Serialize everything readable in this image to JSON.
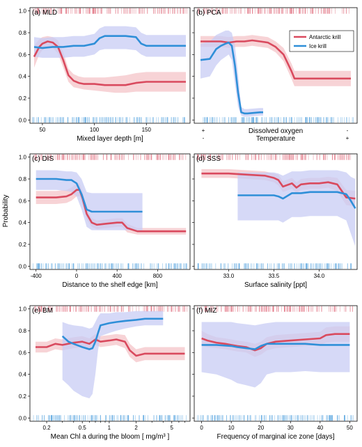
{
  "figure": {
    "ylabel": "Probability",
    "legend": {
      "position": "top-right of panel (b)",
      "items": [
        {
          "name": "Antarctic krill",
          "color": "#d94a5e"
        },
        {
          "name": "Ice krill",
          "color": "#2f8fd8"
        }
      ]
    },
    "colors": {
      "antarctic": "#d94a5e",
      "antarctic_band": "#f4c4c8",
      "ice": "#2f8fd8",
      "ice_band": "#c8ccf4"
    }
  },
  "chart_data": [
    {
      "type": "line",
      "title": "(a) MLD",
      "xlabel": "Mixed layer depth [m]",
      "xlim": [
        38,
        192
      ],
      "ylim": [
        -0.03,
        1.03
      ],
      "xticks": [
        50,
        100,
        150
      ],
      "xtick_labels": [
        "50",
        "100",
        "150"
      ],
      "series": [
        {
          "name": "Antarctic krill",
          "x": [
            42,
            47,
            50,
            55,
            60,
            65,
            70,
            75,
            80,
            85,
            90,
            100,
            110,
            120,
            130,
            140,
            150,
            160,
            170,
            180,
            188
          ],
          "y": [
            0.58,
            0.67,
            0.7,
            0.72,
            0.71,
            0.67,
            0.55,
            0.41,
            0.36,
            0.34,
            0.33,
            0.33,
            0.32,
            0.32,
            0.32,
            0.34,
            0.35,
            0.35,
            0.35,
            0.35,
            0.35
          ],
          "band_lo": [
            0.48,
            0.6,
            0.64,
            0.67,
            0.66,
            0.61,
            0.48,
            0.35,
            0.3,
            0.29,
            0.28,
            0.27,
            0.26,
            0.25,
            0.25,
            0.26,
            0.26,
            0.26,
            0.26,
            0.26,
            0.26
          ],
          "band_hi": [
            0.68,
            0.74,
            0.76,
            0.77,
            0.76,
            0.73,
            0.62,
            0.47,
            0.42,
            0.4,
            0.39,
            0.39,
            0.39,
            0.4,
            0.41,
            0.43,
            0.44,
            0.44,
            0.44,
            0.44,
            0.44
          ]
        },
        {
          "name": "Ice krill",
          "x": [
            42,
            50,
            60,
            70,
            80,
            90,
            100,
            105,
            110,
            120,
            130,
            140,
            145,
            150,
            160,
            170,
            180,
            188
          ],
          "y": [
            0.67,
            0.66,
            0.67,
            0.67,
            0.68,
            0.68,
            0.7,
            0.75,
            0.77,
            0.77,
            0.77,
            0.76,
            0.7,
            0.68,
            0.68,
            0.68,
            0.68,
            0.68
          ],
          "band_lo": [
            0.58,
            0.57,
            0.57,
            0.57,
            0.58,
            0.58,
            0.6,
            0.64,
            0.65,
            0.65,
            0.65,
            0.64,
            0.6,
            0.58,
            0.58,
            0.58,
            0.58,
            0.58
          ],
          "band_hi": [
            0.76,
            0.75,
            0.76,
            0.76,
            0.77,
            0.77,
            0.79,
            0.84,
            0.86,
            0.86,
            0.86,
            0.85,
            0.8,
            0.78,
            0.78,
            0.78,
            0.78,
            0.78
          ]
        }
      ]
    },
    {
      "type": "line",
      "title": "(b) PCA",
      "xlabel_lines": [
        "Dissolved oxygen",
        "Temperature"
      ],
      "xlim": [
        -0.02,
        1.02
      ],
      "ylim": [
        -0.03,
        1.03
      ],
      "corner_marks": {
        "left": [
          "+",
          "-"
        ],
        "right": [
          "-",
          "+"
        ]
      },
      "series": [
        {
          "name": "Antarctic krill",
          "x": [
            0.02,
            0.1,
            0.15,
            0.2,
            0.25,
            0.3,
            0.35,
            0.4,
            0.45,
            0.5,
            0.55,
            0.6,
            0.62,
            0.7,
            0.8,
            0.9,
            0.98
          ],
          "y": [
            0.72,
            0.72,
            0.72,
            0.71,
            0.72,
            0.72,
            0.73,
            0.72,
            0.71,
            0.67,
            0.6,
            0.45,
            0.38,
            0.38,
            0.38,
            0.38,
            0.38
          ],
          "band_lo": [
            0.67,
            0.67,
            0.67,
            0.66,
            0.67,
            0.67,
            0.68,
            0.67,
            0.66,
            0.62,
            0.54,
            0.38,
            0.31,
            0.31,
            0.31,
            0.31,
            0.31
          ],
          "band_hi": [
            0.77,
            0.77,
            0.77,
            0.76,
            0.77,
            0.77,
            0.78,
            0.77,
            0.76,
            0.72,
            0.66,
            0.52,
            0.45,
            0.45,
            0.45,
            0.45,
            0.45
          ]
        },
        {
          "name": "Ice krill",
          "x": [
            0.02,
            0.08,
            0.12,
            0.15,
            0.18,
            0.2,
            0.22,
            0.24,
            0.26,
            0.28,
            0.3,
            0.32,
            0.4,
            0.42
          ],
          "y": [
            0.55,
            0.56,
            0.65,
            0.68,
            0.7,
            0.71,
            0.68,
            0.5,
            0.25,
            0.07,
            0.06,
            0.06,
            0.07,
            0.07
          ],
          "band_lo": [
            0.38,
            0.4,
            0.5,
            0.55,
            0.58,
            0.6,
            0.55,
            0.33,
            0.12,
            0.04,
            0.03,
            0.03,
            0.04,
            0.04
          ],
          "band_hi": [
            0.7,
            0.72,
            0.78,
            0.8,
            0.82,
            0.82,
            0.8,
            0.68,
            0.42,
            0.12,
            0.1,
            0.1,
            0.11,
            0.11
          ]
        }
      ]
    },
    {
      "type": "line",
      "title": "(c) DIS",
      "xlabel": "Distance to the shelf edge [km]",
      "xlim": [
        -460,
        1120
      ],
      "ylim": [
        -0.03,
        1.03
      ],
      "xticks": [
        -400,
        0,
        400,
        800
      ],
      "xtick_labels": [
        "-400",
        "0",
        "400",
        "800"
      ],
      "series": [
        {
          "name": "Antarctic krill",
          "x": [
            -400,
            -300,
            -200,
            -100,
            -50,
            0,
            30,
            60,
            100,
            150,
            200,
            300,
            400,
            450,
            500,
            600,
            700,
            800,
            900,
            1000,
            1080
          ],
          "y": [
            0.63,
            0.63,
            0.63,
            0.64,
            0.66,
            0.7,
            0.7,
            0.62,
            0.48,
            0.4,
            0.38,
            0.39,
            0.4,
            0.4,
            0.35,
            0.32,
            0.32,
            0.32,
            0.32,
            0.32,
            0.32
          ],
          "band_lo": [
            0.57,
            0.57,
            0.57,
            0.58,
            0.6,
            0.64,
            0.64,
            0.56,
            0.43,
            0.36,
            0.34,
            0.35,
            0.36,
            0.36,
            0.31,
            0.29,
            0.29,
            0.29,
            0.29,
            0.29,
            0.29
          ],
          "band_hi": [
            0.69,
            0.69,
            0.69,
            0.7,
            0.72,
            0.76,
            0.76,
            0.68,
            0.53,
            0.44,
            0.42,
            0.43,
            0.44,
            0.44,
            0.39,
            0.35,
            0.35,
            0.35,
            0.35,
            0.35,
            0.35
          ]
        },
        {
          "name": "Ice krill",
          "x": [
            -400,
            -300,
            -200,
            -100,
            -50,
            0,
            50,
            100,
            150,
            200,
            300,
            400,
            500,
            600,
            650
          ],
          "y": [
            0.8,
            0.8,
            0.8,
            0.79,
            0.79,
            0.76,
            0.66,
            0.52,
            0.5,
            0.5,
            0.5,
            0.5,
            0.5,
            0.5,
            0.5
          ],
          "band_lo": [
            0.7,
            0.7,
            0.7,
            0.69,
            0.68,
            0.64,
            0.52,
            0.36,
            0.33,
            0.33,
            0.33,
            0.33,
            0.33,
            0.33,
            0.33
          ],
          "band_hi": [
            0.88,
            0.88,
            0.88,
            0.87,
            0.87,
            0.86,
            0.8,
            0.68,
            0.67,
            0.67,
            0.67,
            0.67,
            0.67,
            0.67,
            0.67
          ]
        }
      ]
    },
    {
      "type": "line",
      "title": "(d) SSS",
      "xlabel": "Surface salinity [ppt]",
      "xlim": [
        32.62,
        34.42
      ],
      "ylim": [
        -0.03,
        1.03
      ],
      "xticks": [
        33.0,
        33.5,
        34.0
      ],
      "xtick_labels": [
        "33.0",
        "33.5",
        "34.0"
      ],
      "series": [
        {
          "name": "Antarctic krill",
          "x": [
            32.7,
            33.0,
            33.2,
            33.4,
            33.5,
            33.55,
            33.6,
            33.7,
            33.75,
            33.8,
            33.9,
            34.0,
            34.1,
            34.2,
            34.3,
            34.4
          ],
          "y": [
            0.85,
            0.85,
            0.84,
            0.83,
            0.81,
            0.79,
            0.73,
            0.76,
            0.72,
            0.75,
            0.76,
            0.76,
            0.77,
            0.75,
            0.63,
            0.62
          ],
          "band_lo": [
            0.81,
            0.81,
            0.8,
            0.79,
            0.77,
            0.74,
            0.68,
            0.71,
            0.67,
            0.7,
            0.71,
            0.71,
            0.72,
            0.69,
            0.56,
            0.55
          ],
          "band_hi": [
            0.89,
            0.89,
            0.88,
            0.87,
            0.85,
            0.84,
            0.78,
            0.81,
            0.77,
            0.8,
            0.81,
            0.81,
            0.82,
            0.81,
            0.7,
            0.69
          ]
        },
        {
          "name": "Ice krill",
          "x": [
            33.1,
            33.2,
            33.3,
            33.4,
            33.5,
            33.55,
            33.6,
            33.7,
            33.8,
            33.9,
            34.0,
            34.1,
            34.2,
            34.3,
            34.35,
            34.4
          ],
          "y": [
            0.65,
            0.65,
            0.65,
            0.65,
            0.65,
            0.64,
            0.62,
            0.67,
            0.67,
            0.68,
            0.68,
            0.68,
            0.68,
            0.66,
            0.6,
            0.53
          ],
          "band_lo": [
            0.42,
            0.42,
            0.42,
            0.42,
            0.42,
            0.42,
            0.4,
            0.45,
            0.45,
            0.46,
            0.46,
            0.46,
            0.46,
            0.42,
            0.3,
            0.18
          ],
          "band_hi": [
            0.86,
            0.86,
            0.86,
            0.86,
            0.86,
            0.85,
            0.83,
            0.87,
            0.87,
            0.88,
            0.88,
            0.88,
            0.88,
            0.86,
            0.82,
            0.8
          ]
        }
      ]
    },
    {
      "type": "line",
      "title": "(e) BM",
      "xlabel": "Mean Chl a during the bloom [ mg/m³ ]",
      "x_scale": "log",
      "xlim": [
        0.13,
        8.0
      ],
      "ylim": [
        -0.03,
        1.03
      ],
      "xticks": [
        0.2,
        0.5,
        1,
        2,
        5
      ],
      "xtick_labels": [
        "0.2",
        "0.5",
        "1",
        "2",
        "5"
      ],
      "series": [
        {
          "name": "Antarctic krill",
          "x": [
            0.15,
            0.2,
            0.25,
            0.3,
            0.4,
            0.5,
            0.6,
            0.7,
            0.8,
            1.0,
            1.2,
            1.5,
            1.7,
            2.0,
            2.5,
            3.0,
            4.0,
            5.0,
            6.0,
            7.0
          ],
          "y": [
            0.65,
            0.65,
            0.68,
            0.67,
            0.69,
            0.7,
            0.68,
            0.72,
            0.7,
            0.71,
            0.72,
            0.7,
            0.62,
            0.57,
            0.59,
            0.59,
            0.59,
            0.59,
            0.59,
            0.59
          ],
          "band_lo": [
            0.6,
            0.6,
            0.63,
            0.62,
            0.64,
            0.65,
            0.63,
            0.67,
            0.65,
            0.66,
            0.67,
            0.64,
            0.56,
            0.51,
            0.53,
            0.53,
            0.53,
            0.53,
            0.53,
            0.53
          ],
          "band_hi": [
            0.7,
            0.7,
            0.73,
            0.72,
            0.74,
            0.75,
            0.73,
            0.77,
            0.75,
            0.76,
            0.77,
            0.76,
            0.68,
            0.63,
            0.65,
            0.65,
            0.65,
            0.65,
            0.65,
            0.65
          ]
        },
        {
          "name": "Ice krill",
          "x": [
            0.3,
            0.35,
            0.4,
            0.5,
            0.6,
            0.65,
            0.7,
            0.75,
            0.8,
            1.0,
            1.2,
            1.5,
            2.0,
            2.5,
            3.0,
            4.0
          ],
          "y": [
            0.75,
            0.7,
            0.68,
            0.65,
            0.63,
            0.64,
            0.7,
            0.78,
            0.85,
            0.87,
            0.88,
            0.89,
            0.9,
            0.91,
            0.91,
            0.91
          ],
          "band_lo": [
            0.35,
            0.3,
            0.25,
            0.2,
            0.18,
            0.22,
            0.4,
            0.62,
            0.75,
            0.78,
            0.8,
            0.82,
            0.84,
            0.85,
            0.85,
            0.85
          ],
          "band_hi": [
            0.88,
            0.86,
            0.85,
            0.84,
            0.82,
            0.83,
            0.88,
            0.93,
            0.96,
            0.96,
            0.97,
            0.97,
            0.98,
            0.98,
            0.98,
            0.98
          ]
        }
      ]
    },
    {
      "type": "line",
      "title": "(f) MIZ",
      "xlabel": "Frequency of marginal ice zone [days]",
      "xlim": [
        -2.5,
        52.5
      ],
      "ylim": [
        -0.03,
        1.03
      ],
      "xticks": [
        0,
        10,
        20,
        30,
        40,
        50
      ],
      "xtick_labels": [
        "0",
        "10",
        "20",
        "30",
        "40",
        "50"
      ],
      "series": [
        {
          "name": "Antarctic krill",
          "x": [
            0,
            2,
            5,
            8,
            10,
            12,
            15,
            18,
            20,
            22,
            25,
            30,
            35,
            40,
            42,
            45,
            50
          ],
          "y": [
            0.73,
            0.71,
            0.69,
            0.68,
            0.67,
            0.66,
            0.65,
            0.62,
            0.64,
            0.68,
            0.7,
            0.71,
            0.72,
            0.73,
            0.76,
            0.77,
            0.77
          ],
          "band_lo": [
            0.66,
            0.65,
            0.64,
            0.63,
            0.62,
            0.61,
            0.6,
            0.56,
            0.58,
            0.62,
            0.64,
            0.65,
            0.66,
            0.67,
            0.69,
            0.7,
            0.7
          ],
          "band_hi": [
            0.8,
            0.77,
            0.74,
            0.73,
            0.72,
            0.71,
            0.7,
            0.68,
            0.7,
            0.74,
            0.76,
            0.77,
            0.78,
            0.79,
            0.83,
            0.84,
            0.84
          ]
        },
        {
          "name": "Ice krill",
          "x": [
            0,
            5,
            10,
            12,
            15,
            18,
            20,
            22,
            25,
            30,
            35,
            40,
            45,
            50
          ],
          "y": [
            0.67,
            0.67,
            0.66,
            0.65,
            0.64,
            0.63,
            0.66,
            0.68,
            0.68,
            0.68,
            0.68,
            0.67,
            0.67,
            0.67
          ],
          "band_lo": [
            0.42,
            0.4,
            0.35,
            0.32,
            0.3,
            0.28,
            0.32,
            0.4,
            0.42,
            0.42,
            0.43,
            0.42,
            0.42,
            0.42
          ],
          "band_hi": [
            0.88,
            0.88,
            0.88,
            0.87,
            0.86,
            0.85,
            0.86,
            0.87,
            0.88,
            0.88,
            0.88,
            0.88,
            0.88,
            0.88
          ]
        }
      ]
    }
  ]
}
